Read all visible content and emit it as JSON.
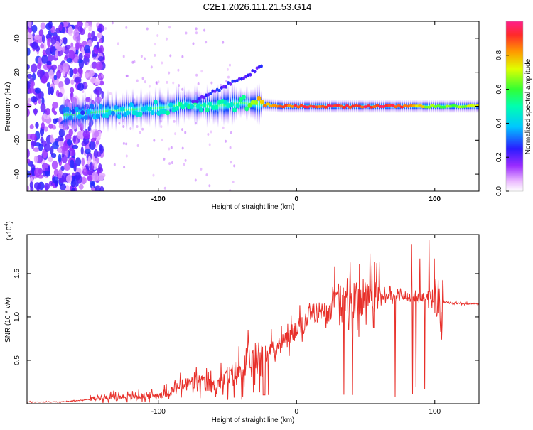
{
  "title": "C2E1.2026.111.21.53.G14",
  "chart_data": [
    {
      "type": "heatmap",
      "xlabel": "Height of straight line (km)",
      "ylabel": "Frequency (Hz)",
      "xlim": [
        -195,
        132
      ],
      "ylim": [
        -50,
        50
      ],
      "xticks": [
        -100,
        0,
        100
      ],
      "xtick_labels": [
        "-100",
        "0",
        "100"
      ],
      "yticks": [
        -40,
        -20,
        0,
        20,
        40
      ],
      "ytick_labels": [
        "-40",
        "-20",
        "0",
        "20",
        "40"
      ],
      "grid": false,
      "colorbar": {
        "label": "Normalized spectral amplitude",
        "range": [
          0,
          1
        ],
        "ticks": [
          0,
          0.2,
          0.4,
          0.6,
          0.8
        ],
        "tick_labels": [
          "0.0",
          "0.2",
          "0.4",
          "0.6",
          "0.8"
        ]
      },
      "ridge": {
        "description_points_x": [
          -165,
          -140,
          -120,
          -100,
          -80,
          -60,
          -40,
          -25,
          -10,
          0,
          20,
          40,
          60,
          80,
          100,
          132
        ],
        "description_points_y": [
          -5,
          -3,
          -2,
          -1,
          1,
          0,
          2,
          1,
          0,
          0,
          0,
          0,
          0,
          0,
          0,
          0
        ],
        "amplitude": [
          0.3,
          0.35,
          0.4,
          0.45,
          0.5,
          0.45,
          0.5,
          0.8,
          0.85,
          0.9,
          0.9,
          0.9,
          0.92,
          0.9,
          0.6,
          0.7
        ]
      }
    },
    {
      "type": "line",
      "xlabel": "Height of straight line (km)",
      "ylabel": "SNR (10 * v/v)",
      "y_multiplier_label": "(x10",
      "y_multiplier_exp": "4",
      "y_multiplier_close": ")",
      "xlim": [
        -195,
        132
      ],
      "ylim": [
        0,
        1.95
      ],
      "xticks": [
        -100,
        0,
        100
      ],
      "xtick_labels": [
        "-100",
        "0",
        "100"
      ],
      "yticks": [
        0.5,
        1.0,
        1.5
      ],
      "ytick_labels": [
        "0.5",
        "1.0",
        "1.5"
      ],
      "color": "#e8302a",
      "series": {
        "name": "SNR",
        "x": [
          -195,
          -170,
          -150,
          -140,
          -120,
          -100,
          -90,
          -80,
          -70,
          -60,
          -50,
          -40,
          -30,
          -20,
          -10,
          0,
          10,
          20,
          30,
          35,
          40,
          50,
          60,
          70,
          80,
          90,
          100,
          103,
          105,
          110,
          120,
          132
        ],
        "y": [
          0.02,
          0.02,
          0.05,
          0.08,
          0.08,
          0.1,
          0.15,
          0.22,
          0.25,
          0.2,
          0.3,
          0.4,
          0.5,
          0.62,
          0.7,
          0.85,
          1.0,
          1.1,
          1.2,
          1.2,
          1.22,
          1.2,
          1.25,
          1.25,
          1.23,
          1.22,
          1.2,
          1.18,
          1.17,
          1.17,
          1.15,
          1.15
        ]
      }
    }
  ]
}
